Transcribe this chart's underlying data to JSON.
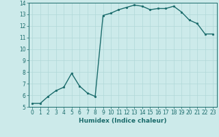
{
  "x": [
    0,
    1,
    2,
    3,
    4,
    5,
    6,
    7,
    8,
    9,
    10,
    11,
    12,
    13,
    14,
    15,
    16,
    17,
    18,
    19,
    20,
    21,
    22,
    23
  ],
  "y": [
    5.3,
    5.3,
    5.9,
    6.4,
    6.7,
    7.9,
    6.8,
    6.2,
    5.9,
    12.9,
    13.1,
    13.4,
    13.6,
    13.8,
    13.7,
    13.4,
    13.5,
    13.5,
    13.7,
    13.2,
    12.5,
    12.2,
    11.3,
    11.3
  ],
  "xlim": [
    -0.5,
    23.5
  ],
  "ylim": [
    5,
    14
  ],
  "yticks": [
    5,
    6,
    7,
    8,
    9,
    10,
    11,
    12,
    13,
    14
  ],
  "xticks": [
    0,
    1,
    2,
    3,
    4,
    5,
    6,
    7,
    8,
    9,
    10,
    11,
    12,
    13,
    14,
    15,
    16,
    17,
    18,
    19,
    20,
    21,
    22,
    23
  ],
  "xlabel": "Humidex (Indice chaleur)",
  "line_color": "#1a6b6b",
  "bg_color": "#cceaea",
  "grid_color": "#b0d8d8",
  "marker": "o",
  "marker_size": 1.8,
  "linewidth": 1.0,
  "xlabel_fontsize": 6.5,
  "tick_fontsize": 5.5,
  "title": ""
}
